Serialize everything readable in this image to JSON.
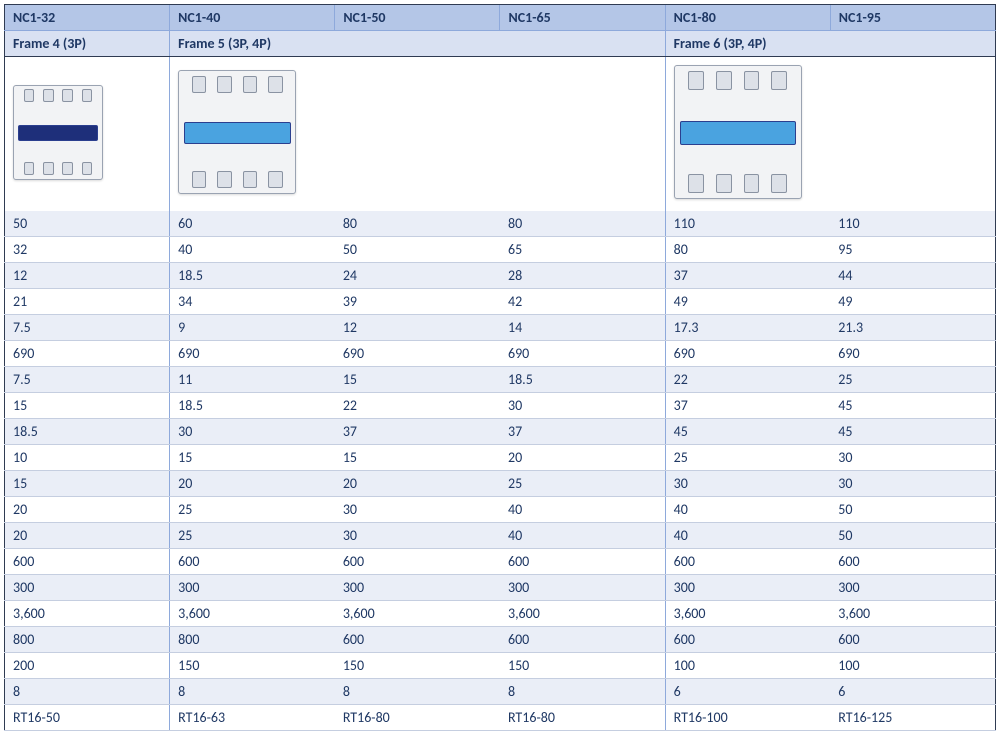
{
  "colors": {
    "header_bg": "#b4c6e7",
    "frame_bg": "#d9e1f2",
    "stripe_a": "#eaeef7",
    "stripe_b": "#ffffff",
    "border_dark": "#2f3b52",
    "border_light": "#8ea9db",
    "text": "#1f3864",
    "device_band_dark": "#1e2f7a",
    "device_band_light": "#4aa3e0"
  },
  "table": {
    "type": "table",
    "columns": [
      {
        "key": "nc1_32",
        "label": "NC1-32"
      },
      {
        "key": "nc1_40",
        "label": "NC1-40"
      },
      {
        "key": "nc1_50",
        "label": "NC1-50"
      },
      {
        "key": "nc1_65",
        "label": "NC1-65"
      },
      {
        "key": "nc1_80",
        "label": "NC1-80"
      },
      {
        "key": "nc1_95",
        "label": "NC1-95"
      }
    ],
    "frames": [
      {
        "label": "Frame 4 (3P)",
        "span": 1,
        "device_size": 90,
        "band": "dark"
      },
      {
        "label": "Frame 5 (3P, 4P)",
        "span": 3,
        "device_size": 118,
        "band": "light"
      },
      {
        "label": "Frame 6 (3P, 4P)",
        "span": 2,
        "device_size": 128,
        "band": "light"
      }
    ],
    "rows": [
      [
        "50",
        "60",
        "80",
        "80",
        "110",
        "110"
      ],
      [
        "32",
        "40",
        "50",
        "65",
        "80",
        "95"
      ],
      [
        "12",
        "18.5",
        "24",
        "28",
        "37",
        "44"
      ],
      [
        "21",
        "34",
        "39",
        "42",
        "49",
        "49"
      ],
      [
        "7.5",
        "9",
        "12",
        "14",
        "17.3",
        "21.3"
      ],
      [
        "690",
        "690",
        "690",
        "690",
        "690",
        "690"
      ],
      [
        "7.5",
        "11",
        "15",
        "18.5",
        "22",
        "25"
      ],
      [
        "15",
        "18.5",
        "22",
        "30",
        "37",
        "45"
      ],
      [
        "18.5",
        "30",
        "37",
        "37",
        "45",
        "45"
      ],
      [
        "10",
        "15",
        "15",
        "20",
        "25",
        "30"
      ],
      [
        "15",
        "20",
        "20",
        "25",
        "30",
        "30"
      ],
      [
        "20",
        "25",
        "30",
        "40",
        "40",
        "50"
      ],
      [
        "20",
        "25",
        "30",
        "40",
        "40",
        "50"
      ],
      [
        "600",
        "600",
        "600",
        "600",
        "600",
        "600"
      ],
      [
        "300",
        "300",
        "300",
        "300",
        "300",
        "300"
      ],
      [
        "3,600",
        "3,600",
        "3,600",
        "3,600",
        "3,600",
        "3,600"
      ],
      [
        "800",
        "800",
        "600",
        "600",
        "600",
        "600"
      ],
      [
        "200",
        "150",
        "150",
        "150",
        "100",
        "100"
      ],
      [
        "8",
        "8",
        "8",
        "8",
        "6",
        "6"
      ],
      [
        "RT16-50",
        "RT16-63",
        "RT16-80",
        "RT16-80",
        "RT16-100",
        "RT16-125"
      ]
    ]
  }
}
